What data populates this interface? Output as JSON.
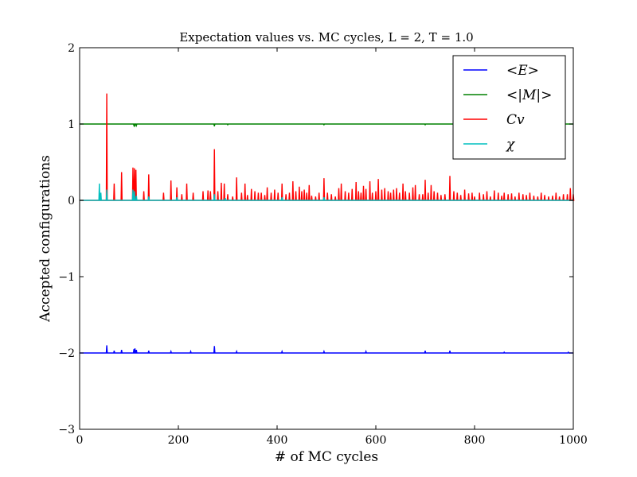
{
  "chart_data": {
    "type": "line",
    "title": "Expectation values vs. MC cycles, L = 2, T = 1.0",
    "xlabel": "# of MC cycles",
    "ylabel": "Accepted configurations",
    "xlim": [
      0,
      1000
    ],
    "ylim": [
      -3,
      2
    ],
    "xticks": [
      0,
      200,
      400,
      600,
      800,
      1000
    ],
    "xtick_labels": [
      "0",
      "200",
      "400",
      "600",
      "800",
      "1000"
    ],
    "yticks": [
      -3,
      -2,
      -1,
      0,
      1,
      2
    ],
    "ytick_labels": [
      "−3",
      "−2",
      "−1",
      "0",
      "1",
      "2"
    ],
    "grid": false,
    "legend_position": "top-right",
    "series": [
      {
        "name": "<E>",
        "color": "#0000ff",
        "baseline": -2.0,
        "spikes": [
          [
            55,
            -1.9
          ],
          [
            70,
            -1.97
          ],
          [
            85,
            -1.96
          ],
          [
            110,
            -1.95
          ],
          [
            112,
            -1.94
          ],
          [
            115,
            -1.96
          ],
          [
            140,
            -1.97
          ],
          [
            185,
            -1.98
          ],
          [
            225,
            -1.98
          ],
          [
            273,
            -1.91
          ],
          [
            318,
            -1.98
          ],
          [
            410,
            -1.98
          ],
          [
            495,
            -1.98
          ],
          [
            580,
            -1.98
          ],
          [
            700,
            -1.97
          ],
          [
            750,
            -1.97
          ],
          [
            860,
            -1.99
          ],
          [
            990,
            -1.99
          ]
        ]
      },
      {
        "name": "<|M|>",
        "color": "#008000",
        "baseline": 1.0,
        "spikes": [
          [
            110,
            0.98
          ],
          [
            112,
            0.98
          ],
          [
            115,
            0.98
          ],
          [
            273,
            0.97
          ],
          [
            300,
            0.99
          ],
          [
            495,
            0.99
          ],
          [
            700,
            0.99
          ]
        ]
      },
      {
        "name": "Cv",
        "color": "#ff0000",
        "baseline": 0.0,
        "spikes": [
          [
            55,
            1.4
          ],
          [
            70,
            0.22
          ],
          [
            85,
            0.37
          ],
          [
            108,
            0.43
          ],
          [
            111,
            0.42
          ],
          [
            114,
            0.4
          ],
          [
            130,
            0.12
          ],
          [
            140,
            0.34
          ],
          [
            170,
            0.1
          ],
          [
            185,
            0.26
          ],
          [
            197,
            0.17
          ],
          [
            207,
            0.08
          ],
          [
            217,
            0.22
          ],
          [
            230,
            0.1
          ],
          [
            250,
            0.12
          ],
          [
            260,
            0.13
          ],
          [
            265,
            0.12
          ],
          [
            273,
            0.67
          ],
          [
            280,
            0.12
          ],
          [
            287,
            0.23
          ],
          [
            293,
            0.22
          ],
          [
            300,
            0.08
          ],
          [
            310,
            0.05
          ],
          [
            318,
            0.3
          ],
          [
            328,
            0.1
          ],
          [
            335,
            0.22
          ],
          [
            340,
            0.07
          ],
          [
            348,
            0.15
          ],
          [
            355,
            0.12
          ],
          [
            362,
            0.1
          ],
          [
            368,
            0.1
          ],
          [
            375,
            0.07
          ],
          [
            380,
            0.17
          ],
          [
            388,
            0.1
          ],
          [
            395,
            0.14
          ],
          [
            402,
            0.1
          ],
          [
            410,
            0.22
          ],
          [
            418,
            0.08
          ],
          [
            425,
            0.1
          ],
          [
            432,
            0.25
          ],
          [
            438,
            0.12
          ],
          [
            445,
            0.18
          ],
          [
            450,
            0.12
          ],
          [
            455,
            0.14
          ],
          [
            460,
            0.1
          ],
          [
            465,
            0.2
          ],
          [
            470,
            0.06
          ],
          [
            478,
            0.05
          ],
          [
            485,
            0.1
          ],
          [
            495,
            0.29
          ],
          [
            502,
            0.1
          ],
          [
            510,
            0.08
          ],
          [
            518,
            0.05
          ],
          [
            525,
            0.16
          ],
          [
            530,
            0.22
          ],
          [
            538,
            0.12
          ],
          [
            545,
            0.1
          ],
          [
            552,
            0.15
          ],
          [
            560,
            0.24
          ],
          [
            565,
            0.12
          ],
          [
            570,
            0.1
          ],
          [
            575,
            0.19
          ],
          [
            580,
            0.15
          ],
          [
            588,
            0.25
          ],
          [
            593,
            0.1
          ],
          [
            600,
            0.12
          ],
          [
            605,
            0.28
          ],
          [
            612,
            0.14
          ],
          [
            618,
            0.16
          ],
          [
            625,
            0.12
          ],
          [
            630,
            0.1
          ],
          [
            636,
            0.14
          ],
          [
            642,
            0.16
          ],
          [
            648,
            0.1
          ],
          [
            655,
            0.22
          ],
          [
            660,
            0.12
          ],
          [
            668,
            0.1
          ],
          [
            675,
            0.17
          ],
          [
            680,
            0.2
          ],
          [
            688,
            0.08
          ],
          [
            695,
            0.08
          ],
          [
            700,
            0.27
          ],
          [
            706,
            0.1
          ],
          [
            712,
            0.2
          ],
          [
            718,
            0.12
          ],
          [
            725,
            0.1
          ],
          [
            732,
            0.07
          ],
          [
            740,
            0.08
          ],
          [
            750,
            0.32
          ],
          [
            758,
            0.12
          ],
          [
            765,
            0.1
          ],
          [
            772,
            0.07
          ],
          [
            780,
            0.14
          ],
          [
            788,
            0.09
          ],
          [
            795,
            0.1
          ],
          [
            800,
            0.05
          ],
          [
            810,
            0.1
          ],
          [
            818,
            0.08
          ],
          [
            825,
            0.12
          ],
          [
            832,
            0.05
          ],
          [
            840,
            0.13
          ],
          [
            848,
            0.1
          ],
          [
            855,
            0.06
          ],
          [
            860,
            0.1
          ],
          [
            868,
            0.08
          ],
          [
            875,
            0.09
          ],
          [
            882,
            0.05
          ],
          [
            890,
            0.1
          ],
          [
            898,
            0.08
          ],
          [
            905,
            0.07
          ],
          [
            912,
            0.1
          ],
          [
            920,
            0.06
          ],
          [
            928,
            0.05
          ],
          [
            935,
            0.1
          ],
          [
            942,
            0.07
          ],
          [
            950,
            0.05
          ],
          [
            958,
            0.06
          ],
          [
            965,
            0.1
          ],
          [
            972,
            0.05
          ],
          [
            980,
            0.08
          ],
          [
            988,
            0.08
          ],
          [
            994,
            0.16
          ],
          [
            1000,
            0.08
          ]
        ]
      },
      {
        "name": "χ",
        "color": "#00bfbf",
        "baseline": 0.0,
        "spikes": [
          [
            40,
            0.22
          ],
          [
            43,
            0.1
          ],
          [
            55,
            0.14
          ],
          [
            108,
            0.14
          ],
          [
            111,
            0.12
          ],
          [
            115,
            0.06
          ],
          [
            140,
            0.05
          ],
          [
            197,
            0.04
          ],
          [
            273,
            0.08
          ],
          [
            295,
            0.03
          ],
          [
            410,
            0.04
          ],
          [
            495,
            0.04
          ]
        ]
      }
    ]
  }
}
